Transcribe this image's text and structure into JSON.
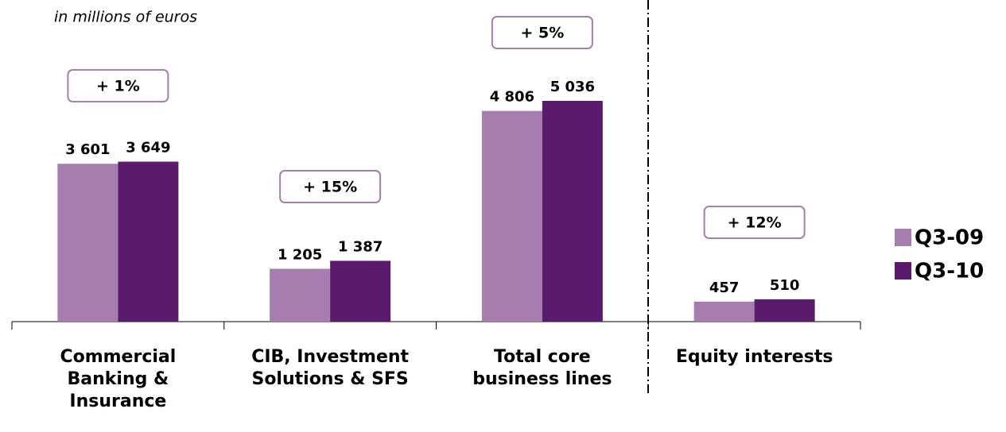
{
  "chart_data": {
    "type": "bar",
    "subtitle": "in millions of euros",
    "categories": [
      "Commercial Banking & Insurance",
      "CIB, Investment Solutions & SFS",
      "Total core business lines",
      "Equity interests"
    ],
    "series": [
      {
        "name": "Q3-09",
        "color": "#a77caf",
        "values": [
          3601,
          1205,
          4806,
          457
        ],
        "value_labels": [
          "3 601",
          "1 205",
          "4 806",
          "457"
        ]
      },
      {
        "name": "Q3-10",
        "color": "#5a1b6d",
        "values": [
          3649,
          1387,
          5036,
          510
        ],
        "value_labels": [
          "3 649",
          "1 387",
          "5 036",
          "510"
        ]
      }
    ],
    "annotations": [
      "+ 1%",
      "+ 15%",
      "+ 5%",
      "+ 12%"
    ],
    "legend": "right"
  }
}
